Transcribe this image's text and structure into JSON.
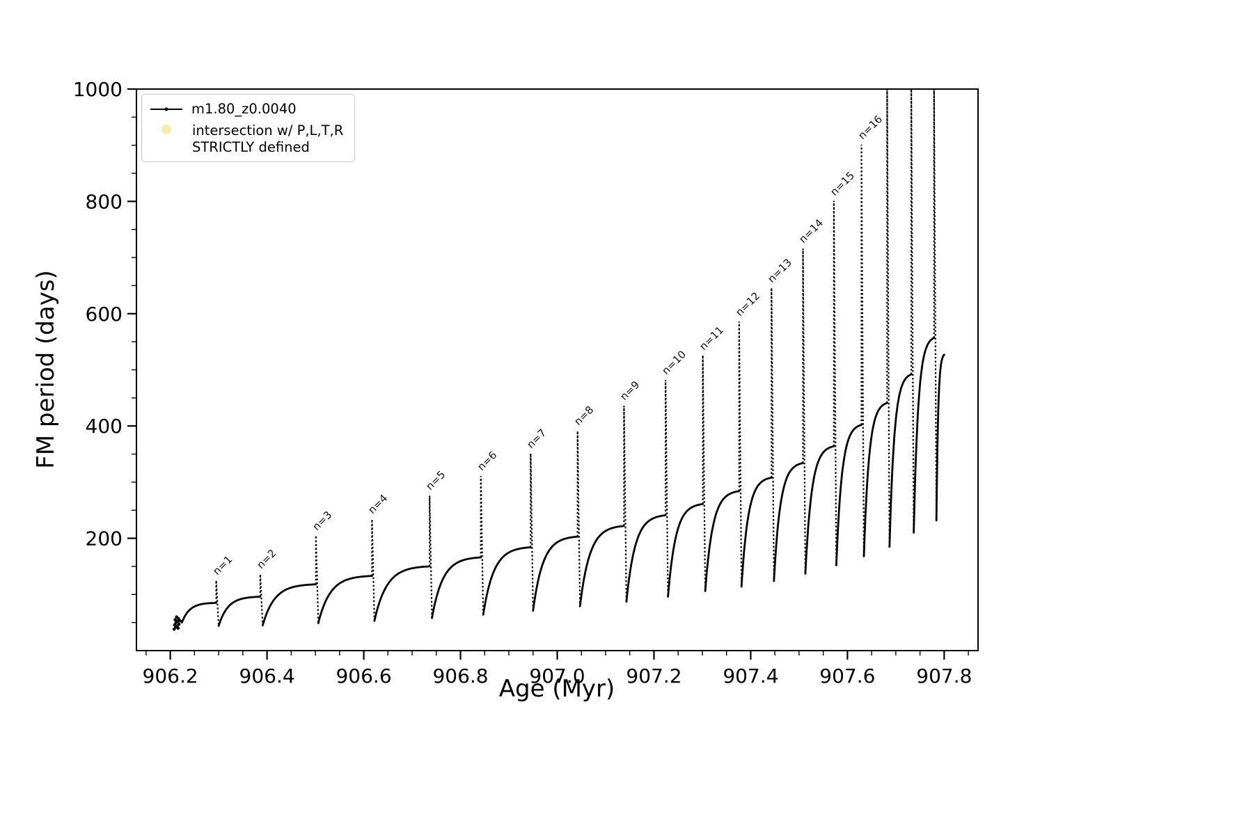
{
  "figure": {
    "background": "#ffffff",
    "axis_color": "#000000"
  },
  "legend": {
    "position": "upper left",
    "items": [
      {
        "label": "m1.80_z0.0040",
        "marker": "line-dot",
        "color": "#000000"
      },
      {
        "label_line1": "intersection w/ P,L,T,R",
        "label_line2": "STRICTLY defined",
        "marker": "dot",
        "color": "#f5eeaa"
      }
    ]
  },
  "chart_data": {
    "type": "line",
    "title": "",
    "xlabel": "Age (Myr)",
    "ylabel": "FM period (days)",
    "xlim": [
      906.13,
      907.87
    ],
    "ylim": [
      0,
      1000
    ],
    "xticks": [
      906.2,
      906.4,
      906.6,
      906.8,
      907.0,
      907.2,
      907.4,
      907.6,
      907.8
    ],
    "yticks": [
      200,
      400,
      600,
      800,
      1000
    ],
    "x_minor_step": 0.05,
    "y_minor_step": 50,
    "grid": false,
    "legend_position": "upper left",
    "series_color": "#000000",
    "initial_scatter": [
      [
        906.208,
        38
      ],
      [
        906.209,
        46
      ],
      [
        906.21,
        55
      ],
      [
        906.211,
        42
      ],
      [
        906.212,
        50
      ],
      [
        906.213,
        60
      ],
      [
        906.214,
        44
      ],
      [
        906.215,
        52
      ],
      [
        906.216,
        40
      ],
      [
        906.217,
        57
      ],
      [
        906.218,
        47
      ],
      [
        906.22,
        53
      ]
    ],
    "cycles": [
      {
        "t0": 906.224,
        "t1": 906.295,
        "y0": 50,
        "ymax": 85,
        "peak": 125,
        "dip": 44,
        "label": "n=1"
      },
      {
        "t0": 906.3,
        "t1": 906.386,
        "y0": 44,
        "ymax": 96,
        "peak": 136,
        "dip": 45,
        "label": "n=2"
      },
      {
        "t0": 906.391,
        "t1": 906.501,
        "y0": 45,
        "ymax": 118,
        "peak": 205,
        "dip": 49,
        "label": "n=3"
      },
      {
        "t0": 906.506,
        "t1": 906.617,
        "y0": 49,
        "ymax": 133,
        "peak": 234,
        "dip": 53,
        "label": "n=4"
      },
      {
        "t0": 906.622,
        "t1": 906.736,
        "y0": 53,
        "ymax": 150,
        "peak": 276,
        "dip": 58,
        "label": "n=5"
      },
      {
        "t0": 906.741,
        "t1": 906.842,
        "y0": 58,
        "ymax": 166,
        "peak": 311,
        "dip": 64,
        "label": "n=6"
      },
      {
        "t0": 906.847,
        "t1": 906.945,
        "y0": 64,
        "ymax": 184,
        "peak": 351,
        "dip": 71,
        "label": "n=7"
      },
      {
        "t0": 906.95,
        "t1": 907.042,
        "y0": 71,
        "ymax": 203,
        "peak": 391,
        "dip": 79,
        "label": "n=8"
      },
      {
        "t0": 907.047,
        "t1": 907.138,
        "y0": 79,
        "ymax": 222,
        "peak": 436,
        "dip": 87,
        "label": "n=9"
      },
      {
        "t0": 907.143,
        "t1": 907.224,
        "y0": 87,
        "ymax": 241,
        "peak": 482,
        "dip": 96,
        "label": "n=10"
      },
      {
        "t0": 907.229,
        "t1": 907.301,
        "y0": 96,
        "ymax": 261,
        "peak": 526,
        "dip": 106,
        "label": "n=11"
      },
      {
        "t0": 907.306,
        "t1": 907.376,
        "y0": 106,
        "ymax": 284,
        "peak": 586,
        "dip": 114,
        "label": "n=12"
      },
      {
        "t0": 907.381,
        "t1": 907.443,
        "y0": 114,
        "ymax": 308,
        "peak": 646,
        "dip": 124,
        "label": "n=13"
      },
      {
        "t0": 907.448,
        "t1": 907.508,
        "y0": 124,
        "ymax": 334,
        "peak": 716,
        "dip": 137,
        "label": "n=14"
      },
      {
        "t0": 907.513,
        "t1": 907.572,
        "y0": 137,
        "ymax": 364,
        "peak": 801,
        "dip": 152,
        "label": "n=15"
      },
      {
        "t0": 907.577,
        "t1": 907.629,
        "y0": 152,
        "ymax": 402,
        "peak": 901,
        "dip": 168,
        "label": "n=16"
      },
      {
        "t0": 907.634,
        "t1": 907.682,
        "y0": 168,
        "ymax": 441,
        "peak": 1000,
        "clipped": true,
        "dip": 185,
        "label": null
      },
      {
        "t0": 907.687,
        "t1": 907.732,
        "y0": 185,
        "ymax": 492,
        "peak": 1000,
        "clipped": true,
        "dip": 210,
        "label": null
      },
      {
        "t0": 907.737,
        "t1": 907.779,
        "y0": 210,
        "ymax": 557,
        "peak": 1000,
        "clipped": true,
        "dip": 232,
        "label": null
      },
      {
        "t0": 907.784,
        "t1": 907.8,
        "y0": 232,
        "ymax": 527,
        "peak": null,
        "dip": null,
        "label": null
      }
    ],
    "annotations": [
      {
        "text": "n=1",
        "x": 906.295,
        "y": 125
      },
      {
        "text": "n=2",
        "x": 906.386,
        "y": 136
      },
      {
        "text": "n=3",
        "x": 906.501,
        "y": 205
      },
      {
        "text": "n=4",
        "x": 906.617,
        "y": 234
      },
      {
        "text": "n=5",
        "x": 906.736,
        "y": 276
      },
      {
        "text": "n=6",
        "x": 906.842,
        "y": 311
      },
      {
        "text": "n=7",
        "x": 906.945,
        "y": 351
      },
      {
        "text": "n=8",
        "x": 907.042,
        "y": 391
      },
      {
        "text": "n=9",
        "x": 907.138,
        "y": 436
      },
      {
        "text": "n=10",
        "x": 907.224,
        "y": 482
      },
      {
        "text": "n=11",
        "x": 907.301,
        "y": 526
      },
      {
        "text": "n=12",
        "x": 907.376,
        "y": 586
      },
      {
        "text": "n=13",
        "x": 907.443,
        "y": 646
      },
      {
        "text": "n=14",
        "x": 907.508,
        "y": 716
      },
      {
        "text": "n=15",
        "x": 907.572,
        "y": 801
      },
      {
        "text": "n=16",
        "x": 907.629,
        "y": 901
      }
    ]
  }
}
